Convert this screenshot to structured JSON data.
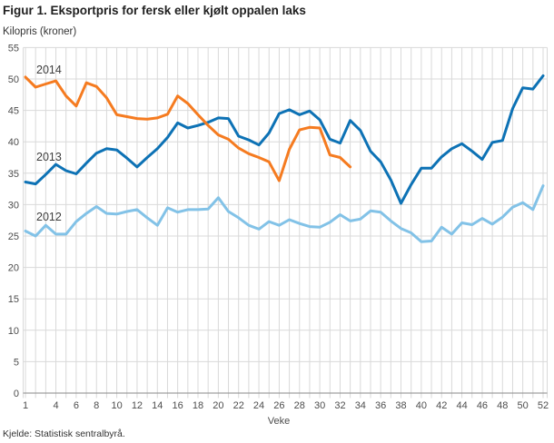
{
  "header": {
    "title": "Figur 1. Eksportpris for fersk eller kjølt oppalen laks",
    "subtitle": "Kilopris (kroner)"
  },
  "footer": {
    "source": "Kjelde: Statistisk sentralbyrå."
  },
  "colors": {
    "grid": "#d9d9d9",
    "axis": "#8a8a8a",
    "tick_text": "#4d4d4d"
  },
  "chart_data": {
    "type": "line",
    "title": "Figur 1. Eksportpris for fersk eller kjølt oppalen laks",
    "xlabel": "Veke",
    "ylabel": "Kilopris (kroner)",
    "x_range": [
      1,
      52
    ],
    "ylim": [
      0,
      55
    ],
    "grid": true,
    "legend_position": "inline-labels",
    "y_ticks": [
      0,
      5,
      10,
      15,
      20,
      25,
      30,
      35,
      40,
      45,
      50,
      55
    ],
    "x_tick_labels": [
      1,
      4,
      6,
      8,
      10,
      12,
      14,
      16,
      18,
      20,
      22,
      24,
      26,
      28,
      30,
      32,
      34,
      36,
      38,
      40,
      42,
      44,
      46,
      48,
      50,
      52
    ],
    "series": [
      {
        "name": "2012",
        "color": "#82c2e7",
        "start_week": 1,
        "values": [
          25.8,
          25.0,
          26.7,
          25.3,
          25.3,
          27.3,
          28.6,
          29.7,
          28.6,
          28.5,
          28.9,
          29.2,
          27.9,
          26.7,
          29.5,
          28.8,
          29.2,
          29.2,
          29.3,
          31.1,
          28.9,
          27.9,
          26.7,
          26.1,
          27.3,
          26.7,
          27.6,
          27.0,
          26.5,
          26.4,
          27.2,
          28.4,
          27.4,
          27.7,
          29.0,
          28.8,
          27.4,
          26.2,
          25.5,
          24.1,
          24.2,
          26.4,
          25.3,
          27.1,
          26.8,
          27.8,
          26.9,
          28.0,
          29.6,
          30.3,
          29.2,
          33.0
        ]
      },
      {
        "name": "2013",
        "color": "#0d72b5",
        "start_week": 1,
        "values": [
          33.6,
          33.3,
          34.8,
          36.4,
          35.4,
          34.9,
          36.6,
          38.2,
          38.9,
          38.7,
          37.4,
          36.0,
          37.5,
          38.9,
          40.7,
          43.0,
          42.2,
          42.6,
          43.1,
          43.8,
          43.7,
          40.9,
          40.3,
          39.5,
          41.4,
          44.5,
          45.1,
          44.3,
          44.9,
          43.5,
          40.4,
          39.8,
          43.4,
          41.8,
          38.5,
          36.8,
          33.9,
          30.2,
          33.2,
          35.8,
          35.8,
          37.6,
          38.9,
          39.7,
          38.5,
          37.2,
          39.9,
          40.2,
          45.3,
          48.6,
          48.4,
          50.5
        ]
      },
      {
        "name": "2014",
        "color": "#f57b20",
        "start_week": 1,
        "values": [
          50.3,
          48.7,
          49.2,
          49.7,
          47.3,
          45.7,
          49.4,
          48.8,
          47.0,
          44.3,
          44.0,
          43.7,
          43.6,
          43.8,
          44.4,
          47.3,
          46.1,
          44.3,
          42.6,
          41.1,
          40.4,
          39.0,
          38.1,
          37.5,
          36.8,
          33.8,
          38.8,
          41.9,
          42.3,
          42.2,
          37.9,
          37.5,
          36.0
        ]
      }
    ]
  }
}
